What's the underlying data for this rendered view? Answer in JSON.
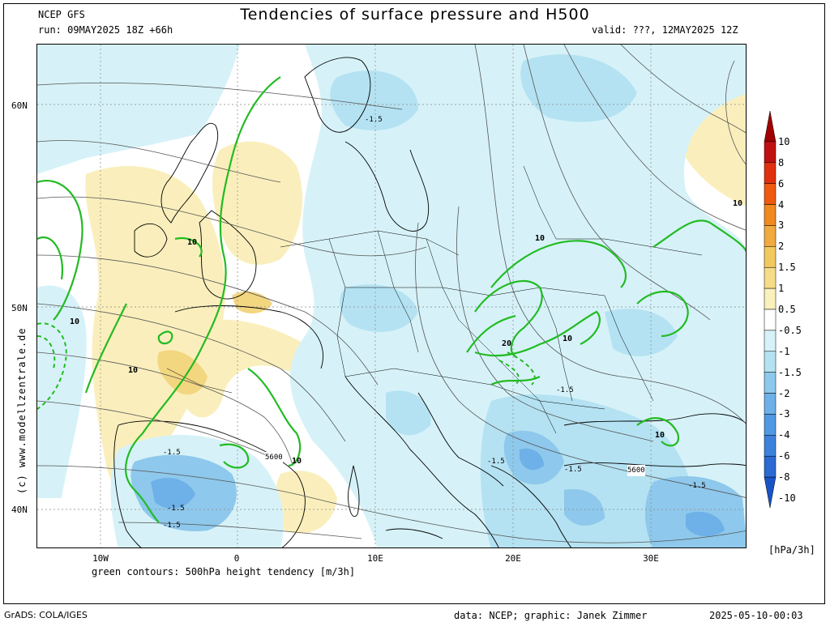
{
  "header": {
    "model": "NCEP GFS",
    "run": "run: 09MAY2025 18Z +66h",
    "title": "Tendencies of surface pressure and H500",
    "valid": "valid: ???, 12MAY2025 12Z"
  },
  "axes": {
    "lat_labels": [
      "60N",
      "50N",
      "40N"
    ],
    "lon_labels": [
      "10W",
      "0",
      "10E",
      "20E",
      "30E"
    ]
  },
  "footer": {
    "caption": "green contours: 500hPa height tendency [m/3h]",
    "grads": "GrADS: COLA/IGES",
    "data": "data: NCEP; graphic: Janek Zimmer",
    "timestamp": "2025-05-10-00:03"
  },
  "credit": "(c) www.modellzentrale.de",
  "colorbar": {
    "unit": "[hPa/3h]",
    "levels": [
      "10",
      "8",
      "6",
      "4",
      "3",
      "2",
      "1.5",
      "1",
      "0.5",
      "-0.5",
      "-1",
      "-1.5",
      "-2",
      "-3",
      "-4",
      "-6",
      "-8",
      "-10"
    ],
    "colors": [
      "#a00000",
      "#c01010",
      "#e03010",
      "#f05a10",
      "#f08a20",
      "#f0aa40",
      "#f2c860",
      "#f6dc88",
      "#faf0bc",
      "#ffffff",
      "#d6f2f8",
      "#b4e2f2",
      "#8ec8ec",
      "#6eb0e8",
      "#5098e4",
      "#3c82dc",
      "#2a6ad2",
      "#1854c8"
    ]
  },
  "map_labels": {
    "pressure_tendency": [
      "-1.5",
      "-1.5",
      "-1.5",
      "-1.5",
      "-1.5",
      "-1.5",
      "-1.5",
      "-1.5"
    ],
    "height_tendency": [
      "10",
      "10",
      "10",
      "10",
      "10",
      "10",
      "10",
      "10",
      "20"
    ],
    "height_contours": [
      "5600",
      "5600"
    ]
  }
}
